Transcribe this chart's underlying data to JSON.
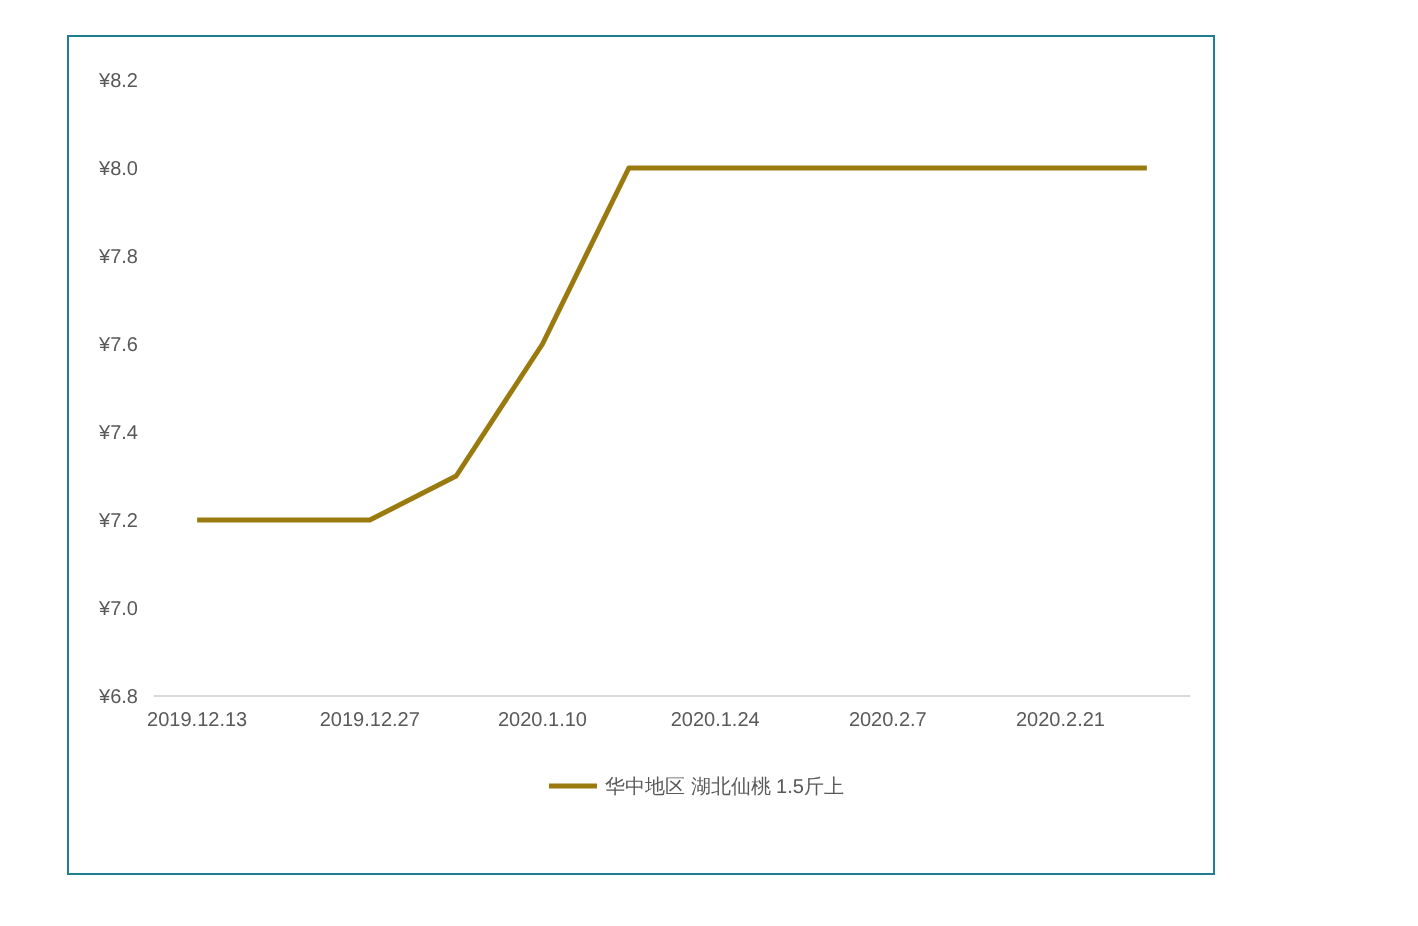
{
  "chart_data": {
    "type": "line",
    "categories": [
      "2019.12.13",
      null,
      "2019.12.27",
      null,
      "2020.1.10",
      null,
      "2020.1.24",
      null,
      "2020.2.7",
      null,
      "2020.2.21",
      null
    ],
    "series": [
      {
        "name": "华中地区 湖北仙桃 1.5斤上",
        "color": "#9a7a0e",
        "values": [
          7.2,
          7.2,
          7.2,
          7.3,
          7.6,
          8.0,
          8.0,
          8.0,
          8.0,
          8.0,
          8.0,
          8.0
        ]
      }
    ],
    "ylim": [
      6.8,
      8.2
    ],
    "yticks": [
      {
        "value": 6.8,
        "label": "¥6.8"
      },
      {
        "value": 7.0,
        "label": "¥7.0"
      },
      {
        "value": 7.2,
        "label": "¥7.2"
      },
      {
        "value": 7.4,
        "label": "¥7.4"
      },
      {
        "value": 7.6,
        "label": "¥7.6"
      },
      {
        "value": 7.8,
        "label": "¥7.8"
      },
      {
        "value": 8.0,
        "label": "¥8.0"
      },
      {
        "value": 8.2,
        "label": "¥8.2"
      }
    ],
    "grid": false,
    "legend": "bottom",
    "marker": "none",
    "line_style": "solid"
  }
}
